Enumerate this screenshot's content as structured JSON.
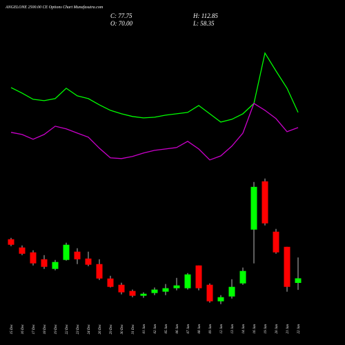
{
  "chart_data": {
    "type": "candlestick",
    "title": "ANGELONE 2500.00 CE Options Chart Munafasutra.com",
    "ohlc_labels": [
      "C: 77.75",
      "H: 112.85",
      "O: 70.00",
      "L: 58.35"
    ],
    "categories": [
      "15 Dec",
      "16 Dec",
      "17 Dec",
      "18 Dec",
      "19 Dec",
      "22 Dec",
      "23 Dec",
      "24 Dec",
      "26 Dec",
      "29 Dec",
      "30 Dec",
      "31 Dec",
      "01 Jan",
      "02 Jan",
      "05 Jan",
      "06 Jan",
      "07 Jan",
      "08 Jan",
      "09 Jan",
      "12 Jan",
      "13 Jan",
      "14 Jan",
      "16 Jan",
      "19 Jan",
      "20 Jan",
      "21 Jan",
      "22 Jan"
    ],
    "open": [
      143.5,
      129.6,
      121.4,
      109.8,
      93.6,
      108.7,
      122.6,
      111.0,
      101.7,
      77.4,
      66.9,
      56.5,
      48.4,
      53.0,
      55.3,
      61.1,
      61.1,
      99.4,
      66.9,
      39.1,
      47.2,
      69.2,
      159.7,
      240.9,
      156.2,
      130.7,
      70
    ],
    "high": [
      145.8,
      133.0,
      124.9,
      116.8,
      108.7,
      137.7,
      128.4,
      122.6,
      109.8,
      82.0,
      70.4,
      58.8,
      54.2,
      62.3,
      68.1,
      78.5,
      86.6,
      99.4,
      69.2,
      49.5,
      76.2,
      95.9,
      239.8,
      245.6,
      160.9,
      130.7,
      112.85
    ],
    "low": [
      131.9,
      116.8,
      99.4,
      93.6,
      91.3,
      107.5,
      101.7,
      98.2,
      75.0,
      62.3,
      50.7,
      46.0,
      44.9,
      49.5,
      49.5,
      57.6,
      58.8,
      57.6,
      36.8,
      34.4,
      43.7,
      66.9,
      102.9,
      166.7,
      119.1,
      55.3,
      58.35
    ],
    "close": [
      134.2,
      119.1,
      102.9,
      97.1,
      105.2,
      134.2,
      109.8,
      100.6,
      77.4,
      63.4,
      54.2,
      48.4,
      51.8,
      58.8,
      61.1,
      65.8,
      84.3,
      61.1,
      39.1,
      46.0,
      63.4,
      90.1,
      231.6,
      170.2,
      121.4,
      63.4,
      77.75
    ],
    "up_color": "#00ff00",
    "down_color": "#ff0000",
    "series": [
      {
        "color": "#00ff00",
        "values": [
          398.7,
          389.4,
          379.0,
          376.6,
          380.1,
          397.5,
          384.8,
          380.1,
          369.7,
          360.4,
          354.6,
          350.0,
          347.6,
          348.8,
          352.3,
          354.6,
          356.9,
          368.5,
          354.6,
          340.7,
          345.3,
          354.6,
          372.0,
          456.7,
          426.5,
          397.5,
          356.9
        ]
      },
      {
        "color": "#cc00cc",
        "values": [
          323.3,
          319.8,
          311.7,
          319.8,
          333.7,
          329.1,
          322.1,
          315.2,
          296.6,
          280.4,
          279.2,
          282.7,
          288.5,
          293.1,
          295.4,
          297.8,
          308.2,
          295.4,
          276.9,
          283.8,
          300.1,
          322.1,
          372.0,
          360.4,
          346.5,
          324.4,
          331.4
        ]
      }
    ],
    "ylim": [
      12,
      546
    ]
  }
}
